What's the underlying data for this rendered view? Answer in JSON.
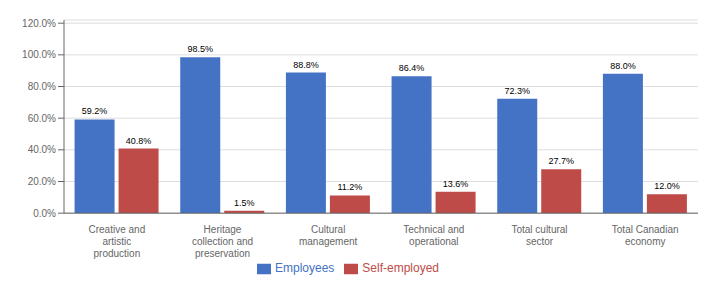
{
  "chart_data": {
    "type": "bar",
    "categories": [
      "Creative and\nartistic\nproduction",
      "Heritage\ncollection and\npreservation",
      "Cultural\nmanagement",
      "Technical and\noperational",
      "Total cultural\nsector",
      "Total Canadian\neconomy"
    ],
    "series": [
      {
        "name": "Employees",
        "color": "#4472C4",
        "values": [
          59.2,
          98.5,
          88.8,
          86.4,
          72.3,
          88.0
        ],
        "value_labels": [
          "59.2%",
          "98.5%",
          "88.8%",
          "86.4%",
          "72.3%",
          "88.0%"
        ]
      },
      {
        "name": "Self-employed",
        "color": "#BE4B48",
        "values": [
          40.8,
          1.5,
          11.2,
          13.6,
          27.7,
          12.0
        ],
        "value_labels": [
          "40.8%",
          "1.5%",
          "11.2%",
          "13.6%",
          "27.7%",
          "12.0%"
        ]
      }
    ],
    "ylim": [
      0,
      122
    ],
    "yticks": [
      {
        "value": 0,
        "label": "0.0%"
      },
      {
        "value": 20,
        "label": "20.0%"
      },
      {
        "value": 40,
        "label": "40.0%"
      },
      {
        "value": 60,
        "label": "60.0%"
      },
      {
        "value": 80,
        "label": "80.0%"
      },
      {
        "value": 100,
        "label": "100.0%"
      },
      {
        "value": 120,
        "label": "120.0%"
      }
    ],
    "grid": true,
    "legend": "bottom",
    "data_labels": true
  }
}
